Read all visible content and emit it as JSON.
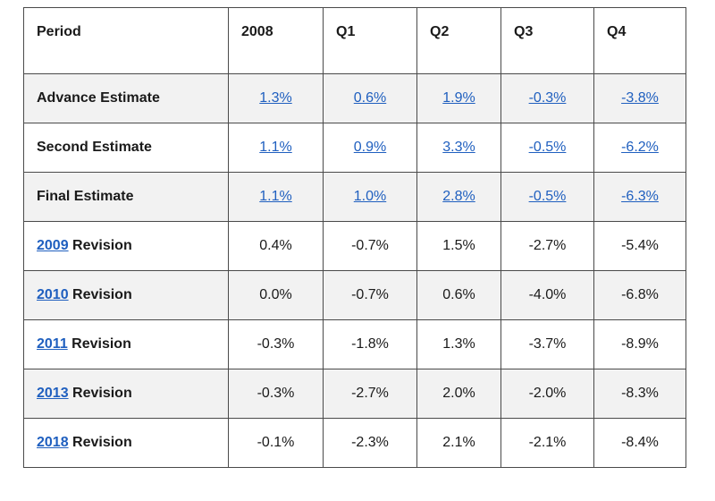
{
  "table": {
    "headers": [
      "Period",
      "2008",
      "Q1",
      "Q2",
      "Q3",
      "Q4"
    ],
    "estimate_rows": [
      {
        "label": "Advance Estimate",
        "values": [
          "1.3%",
          "0.6%",
          "1.9%",
          "-0.3%",
          "-3.8%"
        ]
      },
      {
        "label": "Second Estimate",
        "values": [
          "1.1%",
          "0.9%",
          "3.3%",
          "-0.5%",
          "-6.2%"
        ]
      },
      {
        "label": "Final Estimate",
        "values": [
          "1.1%",
          "1.0%",
          "2.8%",
          "-0.5%",
          "-6.3%"
        ]
      }
    ],
    "revision_rows": [
      {
        "year": "2009",
        "suffix": " Revision",
        "values": [
          "0.4%",
          "-0.7%",
          "1.5%",
          "-2.7%",
          "-5.4%"
        ]
      },
      {
        "year": "2010",
        "suffix": " Revision",
        "values": [
          "0.0%",
          "-0.7%",
          "0.6%",
          "-4.0%",
          "-6.8%"
        ]
      },
      {
        "year": "2011",
        "suffix": " Revision",
        "values": [
          "-0.3%",
          "-1.8%",
          "1.3%",
          "-3.7%",
          "-8.9%"
        ]
      },
      {
        "year": "2013",
        "suffix": " Revision",
        "values": [
          "-0.3%",
          "-2.7%",
          "2.0%",
          "-2.0%",
          "-8.3%"
        ]
      },
      {
        "year": "2018",
        "suffix": " Revision",
        "values": [
          "-0.1%",
          "-2.3%",
          "2.1%",
          "-2.1%",
          "-8.4%"
        ]
      }
    ]
  },
  "colors": {
    "link": "#1f5fbf",
    "shaded_row": "#f2f2f2",
    "border": "#4a4a4a"
  }
}
